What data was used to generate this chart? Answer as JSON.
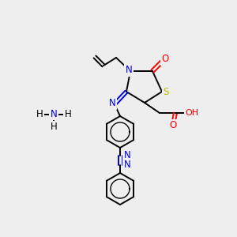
{
  "bg_color": "#eeeeee",
  "atom_colors": {
    "C": "#000000",
    "N": "#0000dd",
    "O": "#ff0000",
    "S": "#bbbb00",
    "H": "#000000"
  },
  "bond_color": "#000000",
  "fig_size": [
    3.0,
    3.0
  ],
  "dpi": 100
}
